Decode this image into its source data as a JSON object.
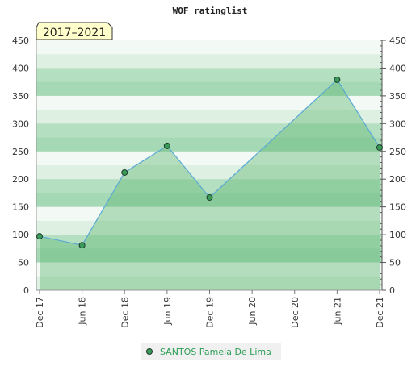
{
  "chart_data": {
    "type": "area",
    "title": "WOF ratinglist",
    "period_badge": "2017–2021",
    "xlabel": "",
    "ylabel": "",
    "ylim": [
      0,
      450
    ],
    "yticks": [
      0,
      50,
      100,
      150,
      200,
      250,
      300,
      350,
      400,
      450
    ],
    "x_ticks": [
      "Dec 17",
      "Jun 18",
      "Dec 18",
      "Jun 19",
      "Dec 19",
      "Jun 20",
      "Dec 20",
      "Jun 21",
      "Dec 21"
    ],
    "grid": true,
    "legend_position": "bottom-center",
    "series": [
      {
        "name": "SANTOS Pamela De Lima",
        "x": [
          "Dec 17",
          "Jun 18",
          "Dec 18",
          "Jun 19",
          "Dec 19",
          "Jun 21",
          "Dec 21"
        ],
        "values": [
          97,
          81,
          212,
          260,
          167,
          379,
          257
        ]
      }
    ],
    "colors": {
      "line": "#5aa9d6",
      "area_fill": "#66bb77",
      "marker_fill": "#3a9a5a",
      "marker_stroke": "#1e3d2a",
      "legend_text": "#2e9e57",
      "badge_bg": "#ffffcc"
    }
  }
}
